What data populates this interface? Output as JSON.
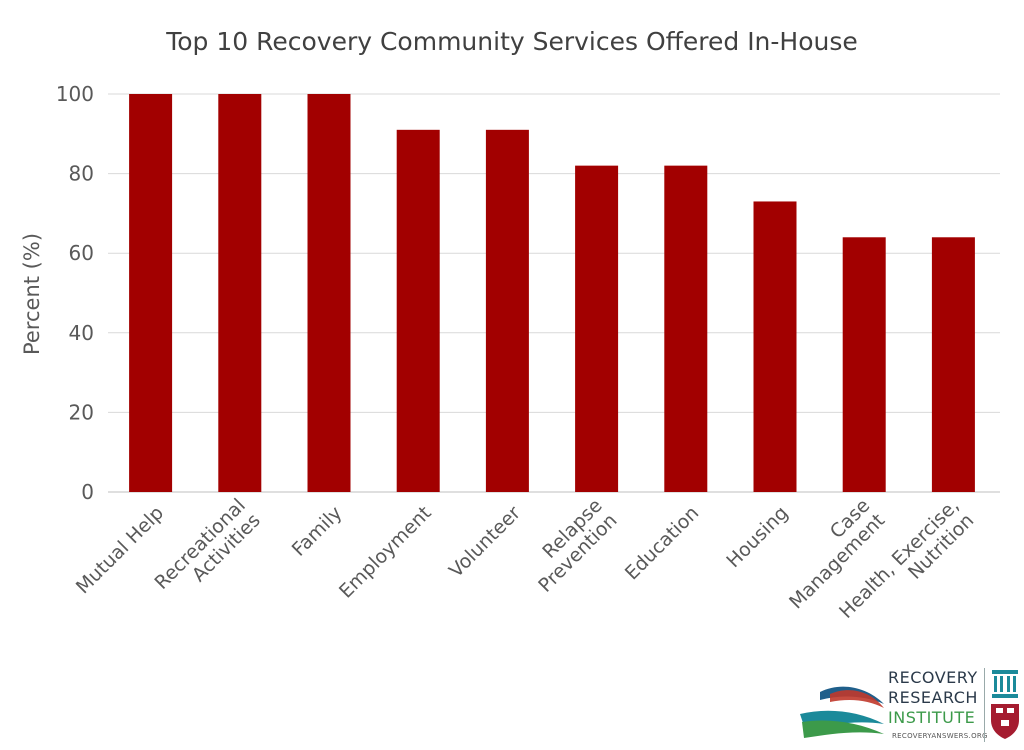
{
  "chart_data": {
    "type": "bar",
    "title": "Top 10 Recovery Community Services Offered In-House",
    "xlabel": "",
    "ylabel": "Percent (%)",
    "ylim": [
      0,
      100
    ],
    "yticks": [
      0,
      20,
      40,
      60,
      80,
      100
    ],
    "grid": true,
    "categories": [
      [
        "Mutual Help"
      ],
      [
        "Recreational",
        "Activities"
      ],
      [
        "Family"
      ],
      [
        "Employment"
      ],
      [
        "Volunteer"
      ],
      [
        "Relapse",
        "Prevention"
      ],
      [
        "Education"
      ],
      [
        "Housing"
      ],
      [
        "Case",
        "Management"
      ],
      [
        "Health, Exercise,",
        "Nutrition"
      ]
    ],
    "values": [
      100,
      100,
      100,
      91,
      91,
      82,
      82,
      73,
      64,
      64
    ],
    "bar_color": "#a20000"
  },
  "logo": {
    "line1": "RECOVERY",
    "line2": "RESEARCH",
    "line3": "INSTITUTE",
    "url": "RECOVERYANSWERS.ORG",
    "accent_colors": [
      "#1f5f8b",
      "#c0392b",
      "#3c9a4a",
      "#1b8a9a"
    ]
  }
}
